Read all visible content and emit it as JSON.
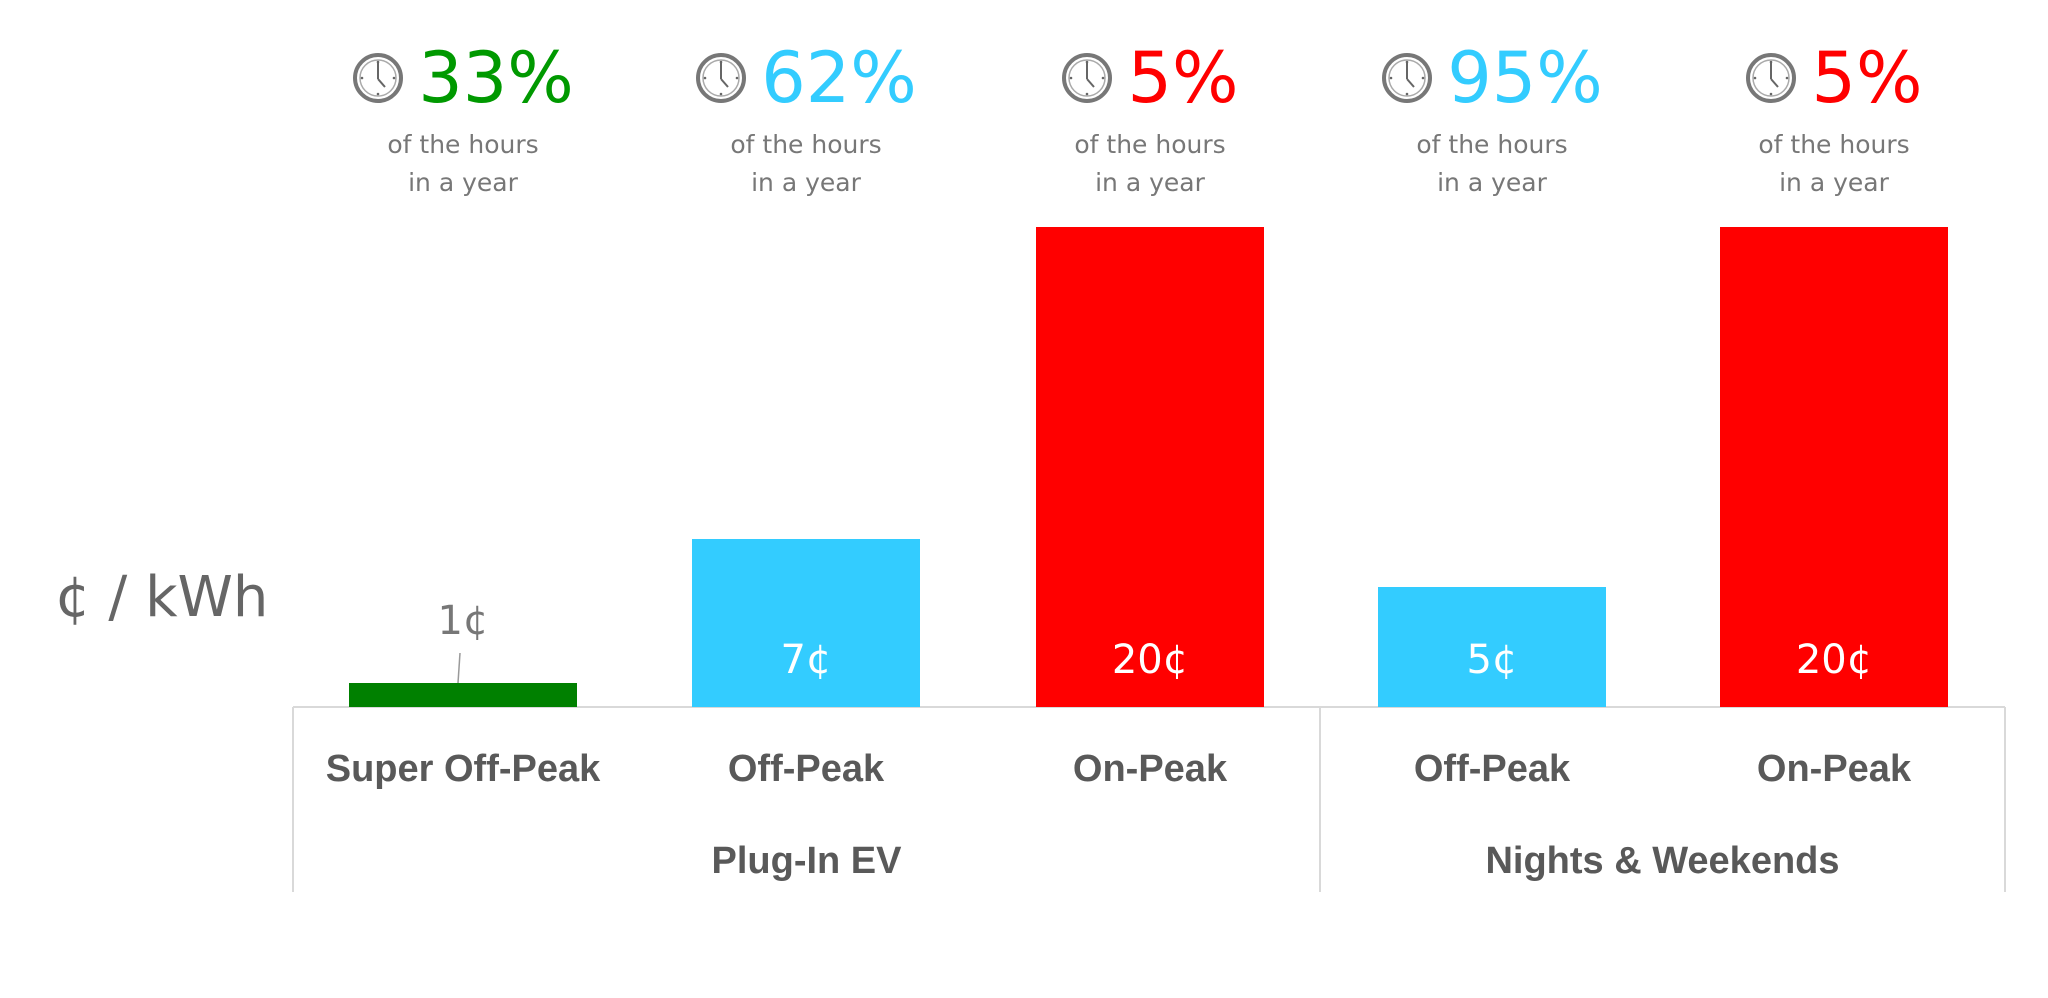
{
  "chart_data": {
    "type": "bar",
    "ylabel": "¢ / kWh",
    "categories": [
      "Super Off-Peak",
      "Off-Peak",
      "On-Peak",
      "Off-Peak",
      "On-Peak"
    ],
    "groups": [
      {
        "label": "Plug-In EV",
        "span": [
          0,
          2
        ]
      },
      {
        "label": "Nights & Weekends",
        "span": [
          3,
          4
        ]
      }
    ],
    "values": [
      1,
      7,
      20,
      5,
      20
    ],
    "value_labels": [
      "1¢",
      "7¢",
      "20¢",
      "5¢",
      "20¢"
    ],
    "colors": [
      "#008000",
      "#33ccff",
      "#ff0000",
      "#33ccff",
      "#ff0000"
    ],
    "hours_share": [
      "33%",
      "62%",
      "5%",
      "95%",
      "5%"
    ],
    "hours_share_color": [
      "#009900",
      "#33ccff",
      "#ff0000",
      "#33ccff",
      "#ff0000"
    ],
    "hours_caption_line1": "of the hours",
    "hours_caption_line2": "in a year",
    "icon": "clock-icon",
    "grid": false,
    "legend": "none",
    "ylim": [
      0,
      20
    ]
  }
}
